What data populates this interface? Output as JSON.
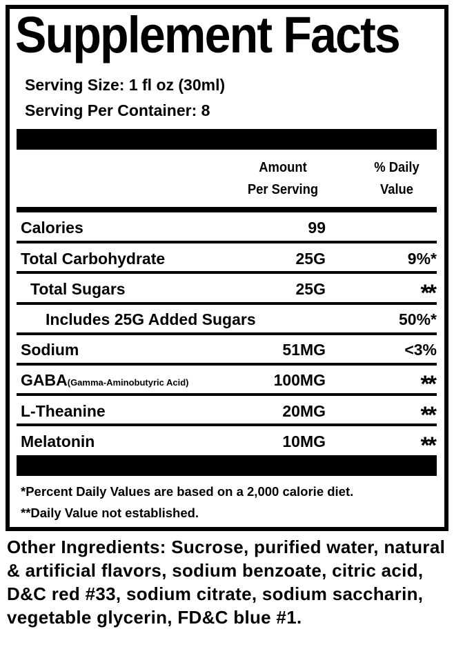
{
  "title": "Supplement Facts",
  "serving_size": "Serving Size: 1 fl oz (30ml)",
  "servings_per_container": "Serving Per Container: 8",
  "header": {
    "amount_line1": "Amount",
    "amount_line2": "Per Serving",
    "dv_line1": "% Daily",
    "dv_line2": "Value"
  },
  "rows": [
    {
      "name": "Calories",
      "amount": "99",
      "dv": ""
    },
    {
      "name": "Total Carbohydrate",
      "amount": "25G",
      "dv": "9%*"
    },
    {
      "name": "Total Sugars",
      "amount": "25G",
      "dv": "**"
    },
    {
      "name": "Includes 25G Added Sugars",
      "amount": "",
      "dv": "50%*"
    },
    {
      "name": "Sodium",
      "amount": "51MG",
      "dv": "<3%"
    },
    {
      "name": "GABA",
      "subname": "(Gamma-Aminobutyric Acid)",
      "amount": "100MG",
      "dv": "**"
    },
    {
      "name": "L-Theanine",
      "amount": "20MG",
      "dv": "**"
    },
    {
      "name": "Melatonin",
      "amount": "10MG",
      "dv": "**"
    }
  ],
  "footnotes": [
    "*Percent Daily Values are based on a 2,000 calorie diet.",
    "**Daily Value not established."
  ],
  "other_ingredients": {
    "label": "Other Ingredients:",
    "text": " Sucrose, purified water, natural & artificial flavors, sodium benzoate, citric acid, D&C red #33, sodium citrate, sodium saccharin, vegetable glycerin, FD&C blue #1."
  }
}
